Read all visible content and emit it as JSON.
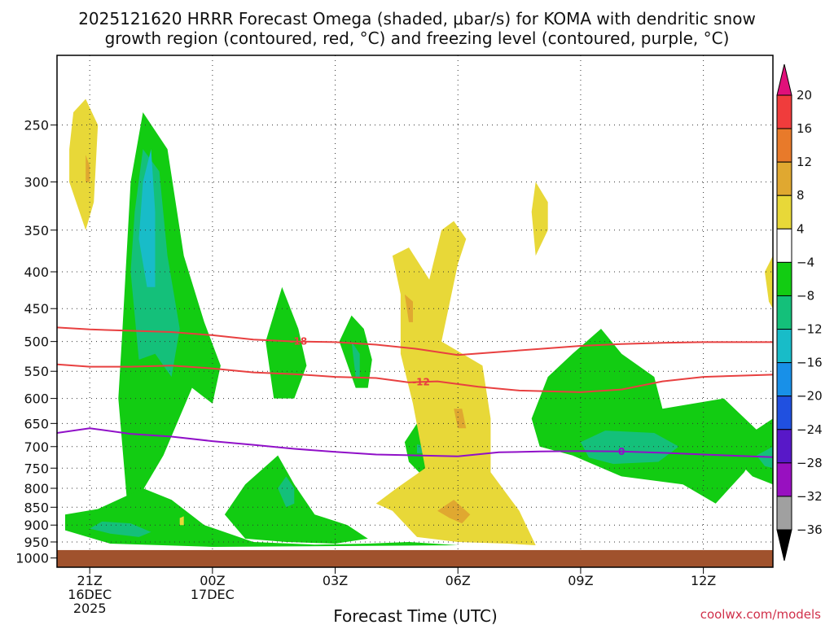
{
  "title_line1": "2025121620 HRRR Forecast Omega (shaded, μbar/s) for KOMA with dendritic snow",
  "title_line2": "growth region (contoured, red, °C) and freezing level (contoured, purple, °C)",
  "credit": "coolwx.com/models",
  "chart_data": {
    "type": "heatmap",
    "xlabel": "Forecast Time (UTC)",
    "ylabel": "",
    "x_range_hours": [
      -0.8,
      16.7
    ],
    "y_range_hpa": [
      200,
      1030
    ],
    "y_scale": "log-pressure",
    "grid": true,
    "x_ticks": [
      {
        "hour": 0,
        "lines": [
          "21Z",
          "16DEC",
          "2025"
        ]
      },
      {
        "hour": 3,
        "lines": [
          "00Z",
          "17DEC"
        ]
      },
      {
        "hour": 6,
        "lines": [
          "03Z"
        ]
      },
      {
        "hour": 9,
        "lines": [
          "06Z"
        ]
      },
      {
        "hour": 12,
        "lines": [
          "09Z"
        ]
      },
      {
        "hour": 15,
        "lines": [
          "12Z"
        ]
      }
    ],
    "y_ticks": [
      250,
      300,
      350,
      400,
      450,
      500,
      550,
      600,
      650,
      700,
      750,
      800,
      850,
      900,
      950,
      1000
    ],
    "colorbar": {
      "levels": [
        20,
        16,
        12,
        8,
        4,
        -4,
        -8,
        -12,
        -16,
        -20,
        -24,
        -28,
        -32,
        -36
      ],
      "colors": [
        "#f03c3c",
        "#e87a2a",
        "#e0a830",
        "#e8d838",
        "#ffffff",
        "#12cc12",
        "#14c07a",
        "#18bcc8",
        "#1890e8",
        "#2050e0",
        "#5818c8",
        "#9810c0",
        "#a0a0a0"
      ],
      "top_arrow_color": "#e0107a",
      "bottom_arrow_color": "#000000"
    },
    "ground_pressure_hpa": 975,
    "ground_color": "#a0522d",
    "contours": [
      {
        "label": "-18",
        "color": "#e84040",
        "label_at_hour": 5.1,
        "points": [
          [
            -0.8,
            478
          ],
          [
            0,
            481
          ],
          [
            2,
            485
          ],
          [
            3,
            490
          ],
          [
            4,
            497
          ],
          [
            5,
            500
          ],
          [
            6,
            501
          ],
          [
            7,
            505
          ],
          [
            8,
            512
          ],
          [
            9,
            522
          ],
          [
            10,
            517
          ],
          [
            11,
            512
          ],
          [
            12,
            507
          ],
          [
            13,
            504
          ],
          [
            14,
            502
          ],
          [
            15,
            501
          ],
          [
            16.7,
            501
          ]
        ]
      },
      {
        "label": "-12",
        "color": "#e84040",
        "label_at_hour": 8.1,
        "points": [
          [
            -0.8,
            538
          ],
          [
            0,
            542
          ],
          [
            1,
            542
          ],
          [
            2,
            540
          ],
          [
            3,
            545
          ],
          [
            4,
            552
          ],
          [
            5,
            555
          ],
          [
            6,
            560
          ],
          [
            7,
            562
          ],
          [
            7.8,
            570
          ],
          [
            8.5,
            568
          ],
          [
            9.5,
            578
          ],
          [
            10.5,
            585
          ],
          [
            12,
            588
          ],
          [
            13,
            583
          ],
          [
            14,
            568
          ],
          [
            15,
            560
          ],
          [
            16.7,
            556
          ]
        ]
      },
      {
        "label": "0",
        "color": "#9010c8",
        "label_at_hour": 13.0,
        "points": [
          [
            -0.8,
            670
          ],
          [
            0,
            660
          ],
          [
            1,
            672
          ],
          [
            2,
            678
          ],
          [
            3,
            688
          ],
          [
            4,
            696
          ],
          [
            5,
            705
          ],
          [
            6,
            712
          ],
          [
            7,
            718
          ],
          [
            8,
            720
          ],
          [
            9,
            722
          ],
          [
            10,
            713
          ],
          [
            11,
            711
          ],
          [
            12,
            710
          ],
          [
            13,
            711
          ],
          [
            14,
            714
          ],
          [
            15,
            718
          ],
          [
            16.7,
            724
          ]
        ]
      }
    ],
    "omega_regions": [
      {
        "value_class": -8,
        "color": "#12cc12",
        "points": [
          [
            0.9,
            820
          ],
          [
            0.7,
            600
          ],
          [
            0.8,
            480
          ],
          [
            1.0,
            300
          ],
          [
            1.3,
            240
          ],
          [
            1.9,
            270
          ],
          [
            2.3,
            380
          ],
          [
            2.8,
            470
          ],
          [
            3.2,
            540
          ],
          [
            3.0,
            610
          ],
          [
            2.5,
            580
          ],
          [
            1.8,
            720
          ],
          [
            1.0,
            860
          ]
        ]
      },
      {
        "value_class": -12,
        "color": "#14c07a",
        "points": [
          [
            1.2,
            530
          ],
          [
            1.0,
            400
          ],
          [
            1.1,
            330
          ],
          [
            1.3,
            270
          ],
          [
            1.7,
            290
          ],
          [
            1.9,
            380
          ],
          [
            2.2,
            480
          ],
          [
            2.0,
            560
          ],
          [
            1.6,
            520
          ]
        ]
      },
      {
        "value_class": -16,
        "color": "#18bcc8",
        "points": [
          [
            1.4,
            420
          ],
          [
            1.2,
            360
          ],
          [
            1.3,
            300
          ],
          [
            1.5,
            270
          ],
          [
            1.6,
            330
          ],
          [
            1.6,
            420
          ]
        ]
      },
      {
        "value_class": -8,
        "color": "#12cc12",
        "points": [
          [
            -0.6,
            915
          ],
          [
            -0.6,
            870
          ],
          [
            0.2,
            855
          ],
          [
            1.3,
            800
          ],
          [
            2.0,
            830
          ],
          [
            2.8,
            900
          ],
          [
            4.0,
            950
          ],
          [
            5.5,
            958
          ],
          [
            6.8,
            955
          ],
          [
            7.8,
            950
          ],
          [
            9.0,
            960
          ],
          [
            3.0,
            965
          ],
          [
            0.5,
            955
          ]
        ]
      },
      {
        "value_class": -12,
        "color": "#14c07a",
        "points": [
          [
            0.0,
            910
          ],
          [
            0.3,
            890
          ],
          [
            1.0,
            895
          ],
          [
            1.5,
            920
          ],
          [
            1.2,
            935
          ],
          [
            0.5,
            925
          ]
        ]
      },
      {
        "value_class": -8,
        "color": "#12cc12",
        "points": [
          [
            3.8,
            940
          ],
          [
            3.3,
            870
          ],
          [
            3.8,
            790
          ],
          [
            4.6,
            720
          ],
          [
            5.0,
            790
          ],
          [
            5.5,
            870
          ],
          [
            6.3,
            900
          ],
          [
            6.8,
            940
          ],
          [
            6.0,
            955
          ],
          [
            4.8,
            950
          ]
        ]
      },
      {
        "value_class": -12,
        "color": "#14c07a",
        "points": [
          [
            4.8,
            850
          ],
          [
            4.6,
            800
          ],
          [
            4.8,
            770
          ],
          [
            5.0,
            800
          ],
          [
            5.0,
            840
          ]
        ]
      },
      {
        "value_class": -8,
        "color": "#12cc12",
        "points": [
          [
            4.5,
            600
          ],
          [
            4.3,
            500
          ],
          [
            4.7,
            420
          ],
          [
            5.1,
            480
          ],
          [
            5.3,
            540
          ],
          [
            5.0,
            600
          ]
        ]
      },
      {
        "value_class": -8,
        "color": "#12cc12",
        "points": [
          [
            6.5,
            580
          ],
          [
            6.1,
            500
          ],
          [
            6.4,
            460
          ],
          [
            6.7,
            480
          ],
          [
            6.9,
            530
          ],
          [
            6.8,
            580
          ]
        ]
      },
      {
        "value_class": -12,
        "color": "#14c07a",
        "points": [
          [
            6.5,
            560
          ],
          [
            6.4,
            500
          ],
          [
            6.6,
            520
          ],
          [
            6.6,
            560
          ]
        ]
      },
      {
        "value_class": -8,
        "color": "#12cc12",
        "points": [
          [
            7.8,
            735
          ],
          [
            7.7,
            690
          ],
          [
            8.0,
            650
          ],
          [
            8.4,
            680
          ],
          [
            8.4,
            740
          ],
          [
            8.1,
            765
          ]
        ]
      },
      {
        "value_class": -12,
        "color": "#14c07a",
        "points": [
          [
            8.0,
            715
          ],
          [
            8.0,
            695
          ],
          [
            8.2,
            700
          ],
          [
            8.2,
            715
          ]
        ]
      },
      {
        "value_class": -8,
        "color": "#12cc12",
        "points": [
          [
            11.0,
            700
          ],
          [
            10.8,
            640
          ],
          [
            11.2,
            560
          ],
          [
            11.8,
            520
          ],
          [
            12.5,
            480
          ],
          [
            13.0,
            520
          ],
          [
            13.8,
            560
          ],
          [
            14.0,
            620
          ],
          [
            15.5,
            600
          ],
          [
            16.5,
            680
          ],
          [
            16.0,
            760
          ],
          [
            15.3,
            840
          ],
          [
            14.5,
            790
          ],
          [
            13.0,
            770
          ],
          [
            11.8,
            720
          ]
        ]
      },
      {
        "value_class": -12,
        "color": "#14c07a",
        "points": [
          [
            12.2,
            725
          ],
          [
            12.0,
            690
          ],
          [
            12.6,
            665
          ],
          [
            13.8,
            670
          ],
          [
            14.4,
            700
          ],
          [
            13.9,
            735
          ],
          [
            12.8,
            740
          ]
        ]
      },
      {
        "value_class": -8,
        "color": "#12cc12",
        "points": [
          [
            16.7,
            640
          ],
          [
            16.0,
            680
          ],
          [
            15.8,
            730
          ],
          [
            16.2,
            770
          ],
          [
            16.7,
            790
          ]
        ]
      },
      {
        "value_class": -12,
        "color": "#14c07a",
        "points": [
          [
            16.7,
            700
          ],
          [
            16.3,
            720
          ],
          [
            16.5,
            745
          ],
          [
            16.7,
            750
          ]
        ]
      }
    ],
    "warm_regions": [
      {
        "value_class": 4,
        "color": "#e8d838",
        "points": [
          [
            -0.5,
            270
          ],
          [
            -0.4,
            240
          ],
          [
            -0.1,
            230
          ],
          [
            0.2,
            250
          ],
          [
            0.1,
            320
          ],
          [
            -0.1,
            350
          ],
          [
            -0.5,
            300
          ]
        ]
      },
      {
        "value_class": 8,
        "color": "#e0a830",
        "points": [
          [
            -0.1,
            300
          ],
          [
            -0.1,
            275
          ],
          [
            0.0,
            285
          ],
          [
            0.0,
            300
          ]
        ]
      },
      {
        "value_class": 4,
        "color": "#e8d838",
        "points": [
          [
            7.6,
            430
          ],
          [
            7.4,
            380
          ],
          [
            7.8,
            370
          ],
          [
            8.3,
            410
          ],
          [
            8.6,
            350
          ],
          [
            8.9,
            340
          ],
          [
            9.2,
            360
          ],
          [
            9.0,
            390
          ],
          [
            8.6,
            500
          ],
          [
            9.6,
            540
          ],
          [
            9.8,
            640
          ],
          [
            9.8,
            760
          ],
          [
            10.5,
            860
          ],
          [
            10.9,
            960
          ],
          [
            10.2,
            955
          ],
          [
            9.0,
            950
          ],
          [
            8.0,
            935
          ],
          [
            7.4,
            860
          ],
          [
            7.0,
            840
          ],
          [
            7.5,
            800
          ],
          [
            8.2,
            750
          ],
          [
            7.9,
            610
          ],
          [
            7.6,
            520
          ]
        ]
      },
      {
        "value_class": 8,
        "color": "#e0a830",
        "points": [
          [
            7.8,
            470
          ],
          [
            7.7,
            430
          ],
          [
            7.9,
            440
          ],
          [
            7.9,
            470
          ]
        ]
      },
      {
        "value_class": 8,
        "color": "#e0a830",
        "points": [
          [
            9.0,
            660
          ],
          [
            8.9,
            620
          ],
          [
            9.1,
            620
          ],
          [
            9.2,
            660
          ]
        ]
      },
      {
        "value_class": 8,
        "color": "#e0a830",
        "points": [
          [
            8.8,
            880
          ],
          [
            8.5,
            860
          ],
          [
            8.9,
            830
          ],
          [
            9.3,
            870
          ],
          [
            9.1,
            895
          ]
        ]
      },
      {
        "value_class": 4,
        "color": "#e8d838",
        "points": [
          [
            10.9,
            380
          ],
          [
            10.8,
            330
          ],
          [
            10.9,
            300
          ],
          [
            11.2,
            320
          ],
          [
            11.2,
            350
          ]
        ]
      },
      {
        "value_class": 4,
        "color": "#e8d838",
        "points": [
          [
            2.2,
            900
          ],
          [
            2.2,
            880
          ],
          [
            2.3,
            875
          ],
          [
            2.3,
            900
          ]
        ]
      },
      {
        "value_class": 4,
        "color": "#e8d838",
        "points": [
          [
            16.7,
            380
          ],
          [
            16.5,
            400
          ],
          [
            16.6,
            440
          ],
          [
            16.7,
            450
          ]
        ]
      }
    ]
  }
}
